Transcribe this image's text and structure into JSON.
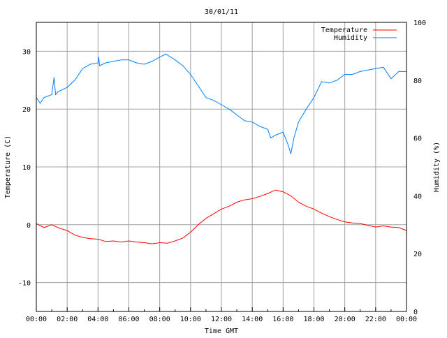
{
  "chart_data": {
    "type": "line",
    "title": "30/01/11",
    "xlabel": "Time GMT",
    "ylabel": "Temperature (C)",
    "y2label": "Humidity (%)",
    "xlim": [
      0,
      24
    ],
    "ylim": [
      -15,
      35
    ],
    "y2lim": [
      0,
      100
    ],
    "grid": true,
    "legend_position": "top-right",
    "x_tick_labels": [
      "00:00",
      "02:00",
      "04:00",
      "06:00",
      "08:00",
      "10:00",
      "12:00",
      "14:00",
      "16:00",
      "18:00",
      "20:00",
      "22:00",
      "00:00"
    ],
    "y_ticks": [
      -10,
      0,
      10,
      20,
      30
    ],
    "y2_ticks": [
      0,
      20,
      40,
      60,
      80,
      100
    ],
    "series": [
      {
        "name": "Temperature",
        "axis": "left",
        "color": "#ff0000",
        "x": [
          0,
          0.5,
          1,
          1.5,
          2,
          2.5,
          3,
          3.5,
          4,
          4.5,
          5,
          5.5,
          6,
          6.5,
          7,
          7.5,
          8,
          8.5,
          9,
          9.5,
          10,
          10.5,
          11,
          11.5,
          12,
          12.5,
          13,
          13.5,
          14,
          14.5,
          15,
          15.5,
          16,
          16.5,
          17,
          17.5,
          18,
          18.5,
          19,
          19.5,
          20,
          20.5,
          21,
          21.5,
          22,
          22.5,
          23,
          23.5,
          24
        ],
        "y": [
          0.2,
          -0.5,
          0,
          -0.6,
          -1,
          -1.8,
          -2.2,
          -2.4,
          -2.5,
          -2.9,
          -2.8,
          -3.0,
          -2.8,
          -3.0,
          -3.1,
          -3.3,
          -3.1,
          -3.2,
          -2.8,
          -2.3,
          -1.3,
          0,
          1.1,
          1.9,
          2.7,
          3.2,
          3.9,
          4.3,
          4.5,
          4.9,
          5.4,
          6.0,
          5.7,
          5.0,
          3.9,
          3.2,
          2.7,
          2.0,
          1.4,
          0.9,
          0.5,
          0.3,
          0.2,
          -0.1,
          -0.4,
          -0.2,
          -0.4,
          -0.5,
          -1.0
        ]
      },
      {
        "name": "Humidity",
        "axis": "right",
        "color": "#0080ff",
        "x": [
          0,
          0.25,
          0.5,
          1,
          1.15,
          1.25,
          1.4,
          2,
          2.5,
          3,
          3.5,
          4,
          4.05,
          4.1,
          4.5,
          5,
          5.5,
          6,
          6.5,
          7,
          7.5,
          8,
          8.4,
          9,
          9.5,
          10,
          10.5,
          11,
          11.5,
          12,
          12.5,
          13,
          13.5,
          14,
          14.5,
          15,
          15.2,
          15.5,
          16,
          16.3,
          16.5,
          16.7,
          17,
          17.5,
          18,
          18.5,
          19,
          19.5,
          20,
          20.5,
          21,
          21.5,
          22,
          22.5,
          23,
          23.5,
          24
        ],
        "y": [
          74,
          72,
          74,
          75,
          81,
          75,
          76,
          77.5,
          80,
          84,
          85.5,
          86,
          88,
          85,
          86,
          86.5,
          87,
          87,
          86,
          85.5,
          86.5,
          88,
          89,
          87,
          85,
          82,
          78,
          74,
          73,
          71.5,
          70,
          68,
          66,
          65.5,
          64,
          63,
          60,
          61,
          62,
          58,
          54.5,
          60,
          65.5,
          70,
          74,
          79.5,
          79,
          80,
          82,
          82,
          83,
          83.5,
          84,
          84.5,
          80.5,
          83,
          83
        ]
      }
    ]
  }
}
